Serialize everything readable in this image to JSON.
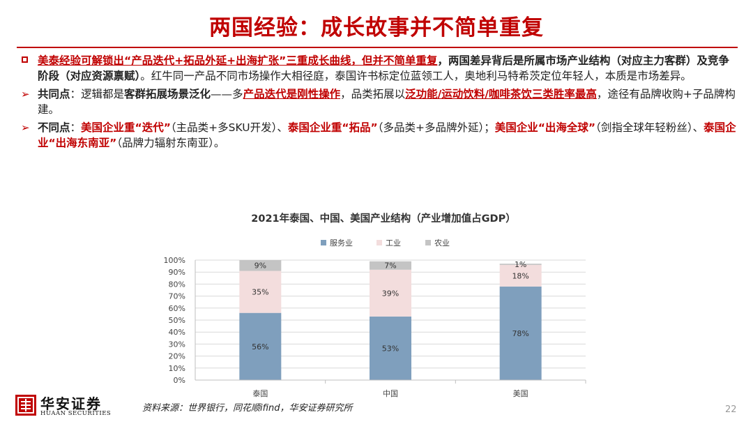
{
  "slide": {
    "title": "两国经验：成长故事并不简单重复",
    "page_number": "22",
    "source": "资料来源：世界银行，同花顺ifind，华安证券研究所"
  },
  "bullets": {
    "b1": {
      "p1": "美泰经验可解锁出“产品迭代+拓品外延+出海扩张”三重成长曲线，但并不简单重复",
      "p2": "，两国差异背后是所属市场产业结构（对应主力客群）及竞争阶段（对应资源禀赋）",
      "p3": "。红牛同一产品不同市场操作大相径庭，泰国许书标定位蓝领工人，奥地利马特希茨定位年轻人，本质是市场差异。"
    },
    "b2": {
      "p1": "共同点",
      "p2": "：逻辑都是",
      "p3": "客群拓展场景泛化",
      "p4": "——多",
      "p5": "产品迭代是刚性操作",
      "p6": "，品类拓展以",
      "p7": "泛功能/运动饮料/咖啡茶饮三类胜率最高",
      "p8": "，途径有品牌收购+子品牌构建。"
    },
    "b3": {
      "p1": "不同点",
      "p2": "：",
      "p3": "美国企业重“迭代”",
      "p4": "（主品类+多SKU开发）、",
      "p5": "泰国企业重“拓品”",
      "p6": "（多品类+多品牌外延）；",
      "p7": "美国企业“出海全球”",
      "p8": "（剑指全球年轻粉丝）、",
      "p9": "泰国企业“出海东南亚”",
      "p10": "（品牌力辐射东南亚）。"
    }
  },
  "logo": {
    "name_cn": "华安证券",
    "name_en": "HUAAN SECURITIES"
  },
  "chart_data": {
    "type": "bar",
    "stacked": true,
    "title": "2021年泰国、中国、美国产业结构（产业增加值占GDP）",
    "categories": [
      "泰国",
      "中国",
      "美国"
    ],
    "series": [
      {
        "name": "服务业",
        "values": [
          56,
          53,
          78
        ],
        "labels": [
          "56%",
          "53%",
          "78%"
        ],
        "color": "#7f9fbd"
      },
      {
        "name": "工业",
        "values": [
          35,
          39,
          18
        ],
        "labels": [
          "35%",
          "39%",
          "18%"
        ],
        "color": "#f3dddd"
      },
      {
        "name": "农业",
        "values": [
          9,
          7,
          1
        ],
        "labels": [
          "9%",
          "7%",
          "1%"
        ],
        "color": "#c4c4c4"
      }
    ],
    "ylim": [
      0,
      100
    ],
    "yticks": [
      "0%",
      "10%",
      "20%",
      "30%",
      "40%",
      "50%",
      "60%",
      "70%",
      "80%",
      "90%",
      "100%"
    ],
    "legend_position": "top"
  }
}
